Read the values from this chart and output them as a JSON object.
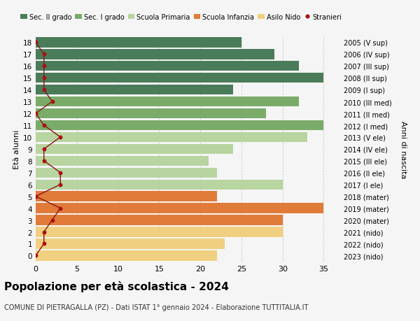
{
  "ages": [
    18,
    17,
    16,
    15,
    14,
    13,
    12,
    11,
    10,
    9,
    8,
    7,
    6,
    5,
    4,
    3,
    2,
    1,
    0
  ],
  "years_labels": [
    "2005 (V sup)",
    "2006 (IV sup)",
    "2007 (III sup)",
    "2008 (II sup)",
    "2009 (I sup)",
    "2010 (III med)",
    "2011 (II med)",
    "2012 (I med)",
    "2013 (V ele)",
    "2014 (IV ele)",
    "2015 (III ele)",
    "2016 (II ele)",
    "2017 (I ele)",
    "2018 (mater)",
    "2019 (mater)",
    "2020 (mater)",
    "2021 (nido)",
    "2022 (nido)",
    "2023 (nido)"
  ],
  "bar_values": [
    25,
    29,
    32,
    35,
    24,
    32,
    28,
    35,
    33,
    24,
    21,
    22,
    30,
    22,
    35,
    30,
    30,
    23,
    22
  ],
  "bar_colors": [
    "#4a7c59",
    "#4a7c59",
    "#4a7c59",
    "#4a7c59",
    "#4a7c59",
    "#7aab68",
    "#7aab68",
    "#7aab68",
    "#b8d4a0",
    "#b8d4a0",
    "#b8d4a0",
    "#b8d4a0",
    "#b8d4a0",
    "#e07b3a",
    "#e07b3a",
    "#e07b3a",
    "#f0d080",
    "#f0d080",
    "#f0d080"
  ],
  "stranieri_values": [
    0,
    1,
    1,
    1,
    1,
    2,
    0,
    1,
    3,
    1,
    1,
    3,
    3,
    0,
    3,
    2,
    1,
    1,
    0
  ],
  "legend_labels": [
    "Sec. II grado",
    "Sec. I grado",
    "Scuola Primaria",
    "Scuola Infanzia",
    "Asilo Nido",
    "Stranieri"
  ],
  "legend_colors": [
    "#4a7c59",
    "#7aab68",
    "#b8d4a0",
    "#e07b3a",
    "#f0d080",
    "#aa1111"
  ],
  "ylabel": "Età alunni",
  "ylabel_right": "Anni di nascita",
  "title": "Popolazione per età scolastica - 2024",
  "subtitle": "COMUNE DI PIETRAGALLA (PZ) - Dati ISTAT 1° gennaio 2024 - Elaborazione TUTTITALIA.IT",
  "xlim_max": 37,
  "bg_color": "#f5f5f5",
  "grid_color": "#cccccc",
  "bar_height": 0.85,
  "figsize": [
    6.0,
    4.6
  ],
  "dpi": 100
}
